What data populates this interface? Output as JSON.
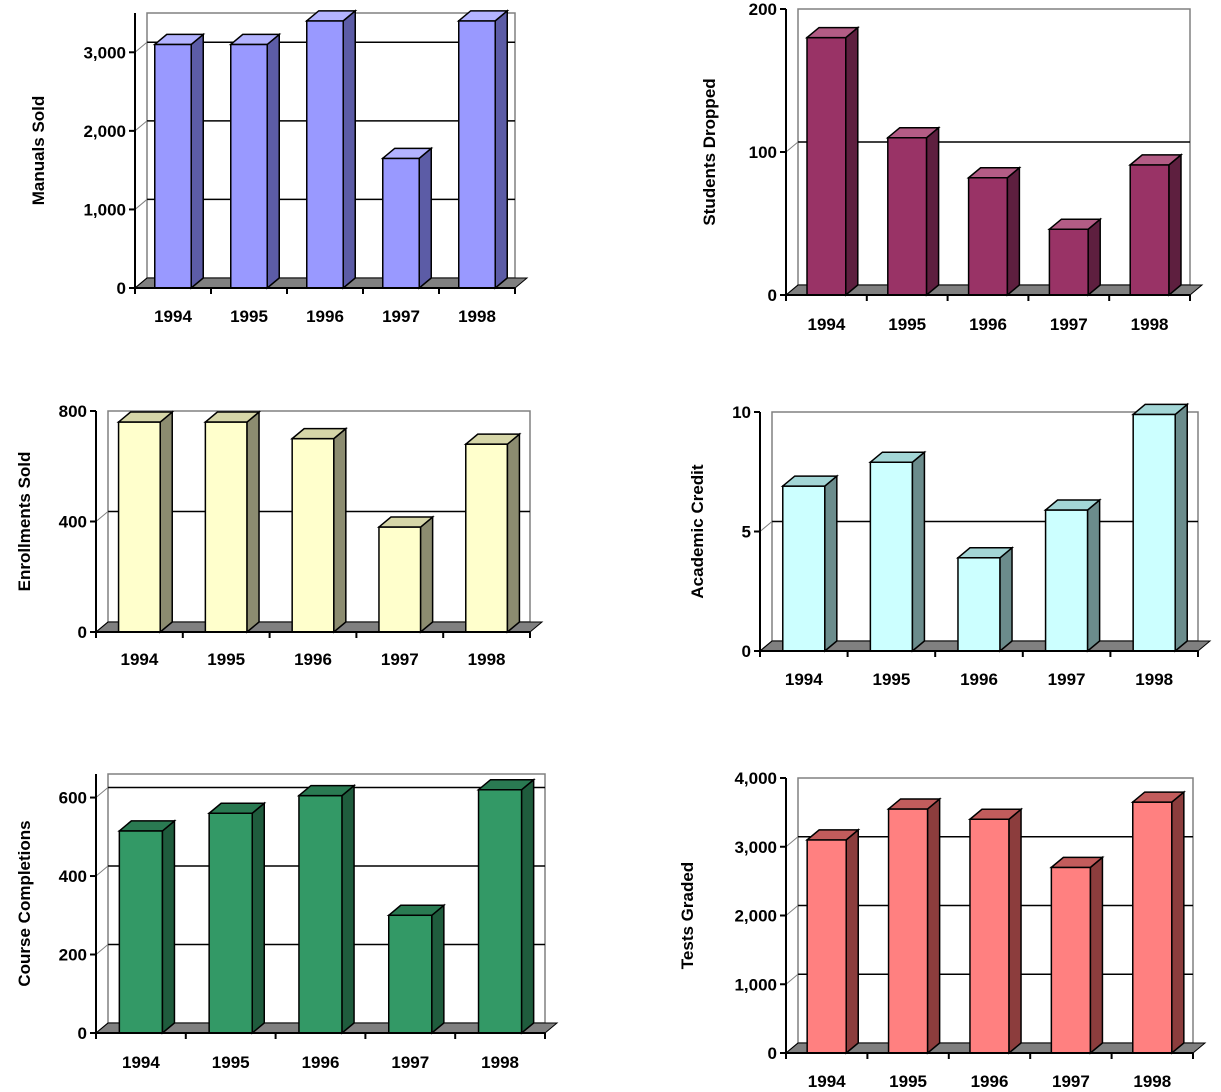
{
  "chart_data": [
    {
      "type": "bar",
      "title": "",
      "xlabel": "",
      "ylabel": "Manuals Sold",
      "categories": [
        "1994",
        "1995",
        "1996",
        "1997",
        "1998"
      ],
      "values": [
        3100,
        3100,
        3400,
        1650,
        3400
      ],
      "ylim": [
        0,
        3500
      ],
      "yticks": [
        0,
        1000,
        2000,
        3000
      ],
      "ytick_labels": [
        "0",
        "1,000",
        "2,000",
        "3,000"
      ],
      "grid": true,
      "colors": {
        "front": "#9999ff",
        "side": "#5c5ca6",
        "top": "#b3b3ff"
      }
    },
    {
      "type": "bar",
      "title": "",
      "xlabel": "",
      "ylabel": "Students Dropped",
      "categories": [
        "1994",
        "1995",
        "1996",
        "1997",
        "1998"
      ],
      "values": [
        180,
        110,
        82,
        46,
        91
      ],
      "ylim": [
        0,
        200
      ],
      "yticks": [
        0,
        100,
        200
      ],
      "ytick_labels": [
        "0",
        "100",
        "200"
      ],
      "grid": true,
      "colors": {
        "front": "#993366",
        "side": "#5e1f3f",
        "top": "#b35c85"
      }
    },
    {
      "type": "bar",
      "title": "",
      "xlabel": "",
      "ylabel": "Enrollments Sold",
      "categories": [
        "1994",
        "1995",
        "1996",
        "1997",
        "1998"
      ],
      "values": [
        760,
        760,
        700,
        380,
        680
      ],
      "ylim": [
        0,
        800
      ],
      "yticks": [
        0,
        400,
        800
      ],
      "ytick_labels": [
        "0",
        "400",
        "800"
      ],
      "grid": true,
      "colors": {
        "front": "#ffffcc",
        "side": "#8c8c70",
        "top": "#d6d6a8"
      }
    },
    {
      "type": "bar",
      "title": "",
      "xlabel": "",
      "ylabel": "Academic Credit",
      "categories": [
        "1994",
        "1995",
        "1996",
        "1997",
        "1998"
      ],
      "values": [
        6.9,
        7.9,
        3.9,
        5.9,
        9.9
      ],
      "ylim": [
        0,
        10
      ],
      "yticks": [
        0,
        5,
        10
      ],
      "ytick_labels": [
        "0",
        "5",
        "10"
      ],
      "grid": true,
      "colors": {
        "front": "#ccffff",
        "side": "#6b8c8c",
        "top": "#a3d6d6"
      }
    },
    {
      "type": "bar",
      "title": "",
      "xlabel": "",
      "ylabel": "Course Completions",
      "categories": [
        "1994",
        "1995",
        "1996",
        "1997",
        "1998"
      ],
      "values": [
        515,
        560,
        605,
        300,
        620
      ],
      "ylim": [
        0,
        660
      ],
      "yticks": [
        0,
        200,
        400,
        600
      ],
      "ytick_labels": [
        "0",
        "200",
        "400",
        "600"
      ],
      "grid": true,
      "colors": {
        "front": "#339966",
        "side": "#1f5c3d",
        "top": "#2a7a52"
      }
    },
    {
      "type": "bar",
      "title": "",
      "xlabel": "",
      "ylabel": "Tests Graded",
      "categories": [
        "1994",
        "1995",
        "1996",
        "1997",
        "1998"
      ],
      "values": [
        3100,
        3550,
        3400,
        2700,
        3650
      ],
      "ylim": [
        0,
        4000
      ],
      "yticks": [
        0,
        1000,
        2000,
        3000,
        4000
      ],
      "ytick_labels": [
        "0",
        "1,000",
        "2,000",
        "3,000",
        "4,000"
      ],
      "grid": true,
      "colors": {
        "front": "#ff8080",
        "side": "#8c3d3d",
        "top": "#c25c5c"
      }
    }
  ]
}
